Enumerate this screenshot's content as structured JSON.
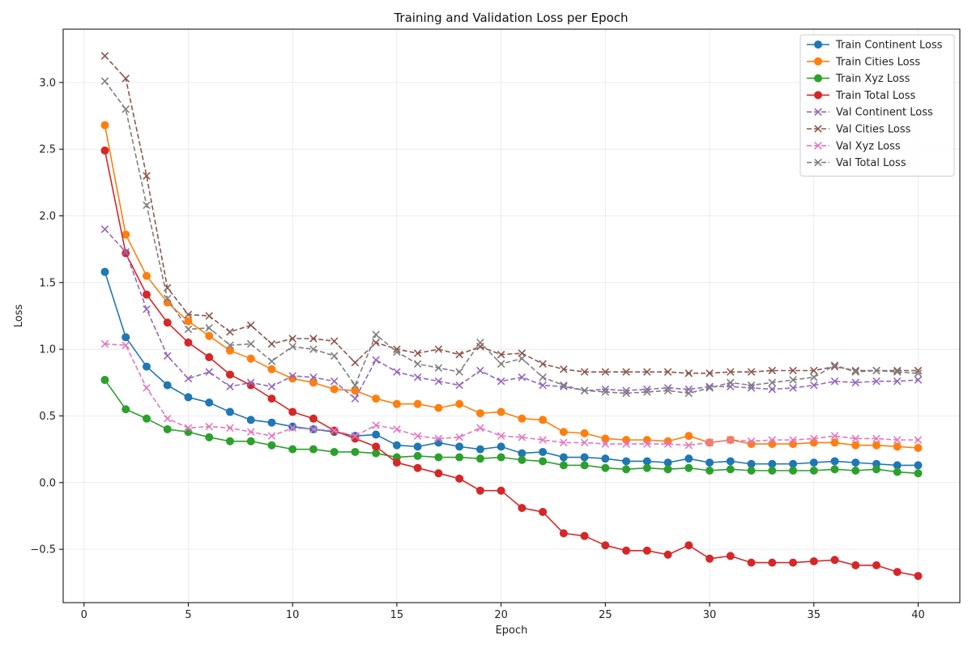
{
  "chart_data": {
    "type": "line",
    "title": "Training and Validation Loss per Epoch",
    "xlabel": "Epoch",
    "ylabel": "Loss",
    "xlim": [
      -1,
      42
    ],
    "ylim": [
      -0.9,
      3.4
    ],
    "xticks": [
      0,
      5,
      10,
      15,
      20,
      25,
      30,
      35,
      40
    ],
    "yticks": [
      -0.5,
      0.0,
      0.5,
      1.0,
      1.5,
      2.0,
      2.5,
      3.0
    ],
    "ytick_labels": [
      "−0.5",
      "0.0",
      "0.5",
      "1.0",
      "1.5",
      "2.0",
      "2.5",
      "3.0"
    ],
    "grid": true,
    "legend_position": "top-right",
    "x": [
      1,
      2,
      3,
      4,
      5,
      6,
      7,
      8,
      9,
      10,
      11,
      12,
      13,
      14,
      15,
      16,
      17,
      18,
      19,
      20,
      21,
      22,
      23,
      24,
      25,
      26,
      27,
      28,
      29,
      30,
      31,
      32,
      33,
      34,
      35,
      36,
      37,
      38,
      39,
      40
    ],
    "series": [
      {
        "name": "Train Continent Loss",
        "color": "#1f77b4",
        "style": "solid",
        "marker": "circle",
        "values": [
          1.58,
          1.09,
          0.87,
          0.73,
          0.64,
          0.6,
          0.53,
          0.47,
          0.45,
          0.42,
          0.4,
          0.38,
          0.35,
          0.36,
          0.28,
          0.27,
          0.3,
          0.27,
          0.25,
          0.27,
          0.22,
          0.23,
          0.19,
          0.19,
          0.18,
          0.16,
          0.16,
          0.15,
          0.18,
          0.15,
          0.16,
          0.14,
          0.14,
          0.14,
          0.15,
          0.16,
          0.15,
          0.14,
          0.13,
          0.13
        ]
      },
      {
        "name": "Train Cities Loss",
        "color": "#ff7f0e",
        "style": "solid",
        "marker": "circle",
        "values": [
          2.68,
          1.86,
          1.55,
          1.35,
          1.21,
          1.1,
          0.99,
          0.93,
          0.85,
          0.78,
          0.75,
          0.7,
          0.69,
          0.63,
          0.59,
          0.59,
          0.56,
          0.59,
          0.52,
          0.53,
          0.48,
          0.47,
          0.38,
          0.37,
          0.33,
          0.32,
          0.32,
          0.31,
          0.35,
          0.3,
          0.32,
          0.29,
          0.29,
          0.29,
          0.3,
          0.3,
          0.28,
          0.28,
          0.27,
          0.26
        ]
      },
      {
        "name": "Train Xyz Loss",
        "color": "#2ca02c",
        "style": "solid",
        "marker": "circle",
        "values": [
          0.77,
          0.55,
          0.48,
          0.4,
          0.38,
          0.34,
          0.31,
          0.31,
          0.28,
          0.25,
          0.25,
          0.23,
          0.23,
          0.22,
          0.19,
          0.2,
          0.19,
          0.19,
          0.18,
          0.19,
          0.17,
          0.16,
          0.13,
          0.13,
          0.11,
          0.1,
          0.11,
          0.1,
          0.11,
          0.09,
          0.1,
          0.09,
          0.09,
          0.09,
          0.09,
          0.1,
          0.09,
          0.1,
          0.08,
          0.07
        ]
      },
      {
        "name": "Train Total Loss",
        "color": "#d62728",
        "style": "solid",
        "marker": "circle",
        "values": [
          2.49,
          1.72,
          1.41,
          1.2,
          1.05,
          0.94,
          0.81,
          0.73,
          0.63,
          0.53,
          0.48,
          0.39,
          0.33,
          0.27,
          0.15,
          0.11,
          0.07,
          0.03,
          -0.06,
          -0.06,
          -0.19,
          -0.22,
          -0.38,
          -0.4,
          -0.47,
          -0.51,
          -0.51,
          -0.54,
          -0.47,
          -0.57,
          -0.55,
          -0.6,
          -0.6,
          -0.6,
          -0.59,
          -0.58,
          -0.62,
          -0.62,
          -0.67,
          -0.7
        ]
      },
      {
        "name": "Val Continent Loss",
        "color": "#9467bd",
        "style": "dashed",
        "marker": "x",
        "values": [
          1.9,
          1.73,
          1.3,
          0.95,
          0.78,
          0.83,
          0.72,
          0.75,
          0.72,
          0.8,
          0.79,
          0.76,
          0.63,
          0.92,
          0.83,
          0.79,
          0.76,
          0.73,
          0.84,
          0.76,
          0.79,
          0.73,
          0.72,
          0.69,
          0.7,
          0.69,
          0.7,
          0.71,
          0.7,
          0.72,
          0.72,
          0.71,
          0.7,
          0.71,
          0.73,
          0.76,
          0.75,
          0.76,
          0.76,
          0.77
        ]
      },
      {
        "name": "Val Cities Loss",
        "color": "#8c564b",
        "style": "dashed",
        "marker": "x",
        "values": [
          3.2,
          3.03,
          2.3,
          1.46,
          1.26,
          1.25,
          1.13,
          1.18,
          1.04,
          1.08,
          1.08,
          1.06,
          0.9,
          1.05,
          1.0,
          0.97,
          1.0,
          0.96,
          1.02,
          0.96,
          0.97,
          0.89,
          0.85,
          0.83,
          0.83,
          0.83,
          0.83,
          0.83,
          0.82,
          0.82,
          0.83,
          0.83,
          0.84,
          0.84,
          0.84,
          0.87,
          0.84,
          0.84,
          0.84,
          0.84
        ]
      },
      {
        "name": "Val Xyz Loss",
        "color": "#e377c2",
        "style": "dashed",
        "marker": "x",
        "values": [
          1.04,
          1.03,
          0.71,
          0.48,
          0.41,
          0.42,
          0.41,
          0.38,
          0.35,
          0.41,
          0.4,
          0.39,
          0.35,
          0.43,
          0.4,
          0.35,
          0.33,
          0.34,
          0.41,
          0.35,
          0.34,
          0.32,
          0.3,
          0.3,
          0.29,
          0.29,
          0.29,
          0.29,
          0.28,
          0.3,
          0.32,
          0.31,
          0.32,
          0.32,
          0.33,
          0.35,
          0.33,
          0.33,
          0.32,
          0.32
        ]
      },
      {
        "name": "Val Total Loss",
        "color": "#7f7f7f",
        "style": "dashed",
        "marker": "x",
        "values": [
          3.01,
          2.8,
          2.08,
          1.38,
          1.15,
          1.16,
          1.03,
          1.04,
          0.91,
          1.02,
          1.0,
          0.95,
          0.73,
          1.11,
          0.98,
          0.89,
          0.86,
          0.83,
          1.05,
          0.89,
          0.93,
          0.79,
          0.73,
          0.69,
          0.68,
          0.67,
          0.68,
          0.69,
          0.67,
          0.71,
          0.75,
          0.73,
          0.75,
          0.77,
          0.79,
          0.88,
          0.83,
          0.84,
          0.83,
          0.82
        ]
      }
    ]
  }
}
